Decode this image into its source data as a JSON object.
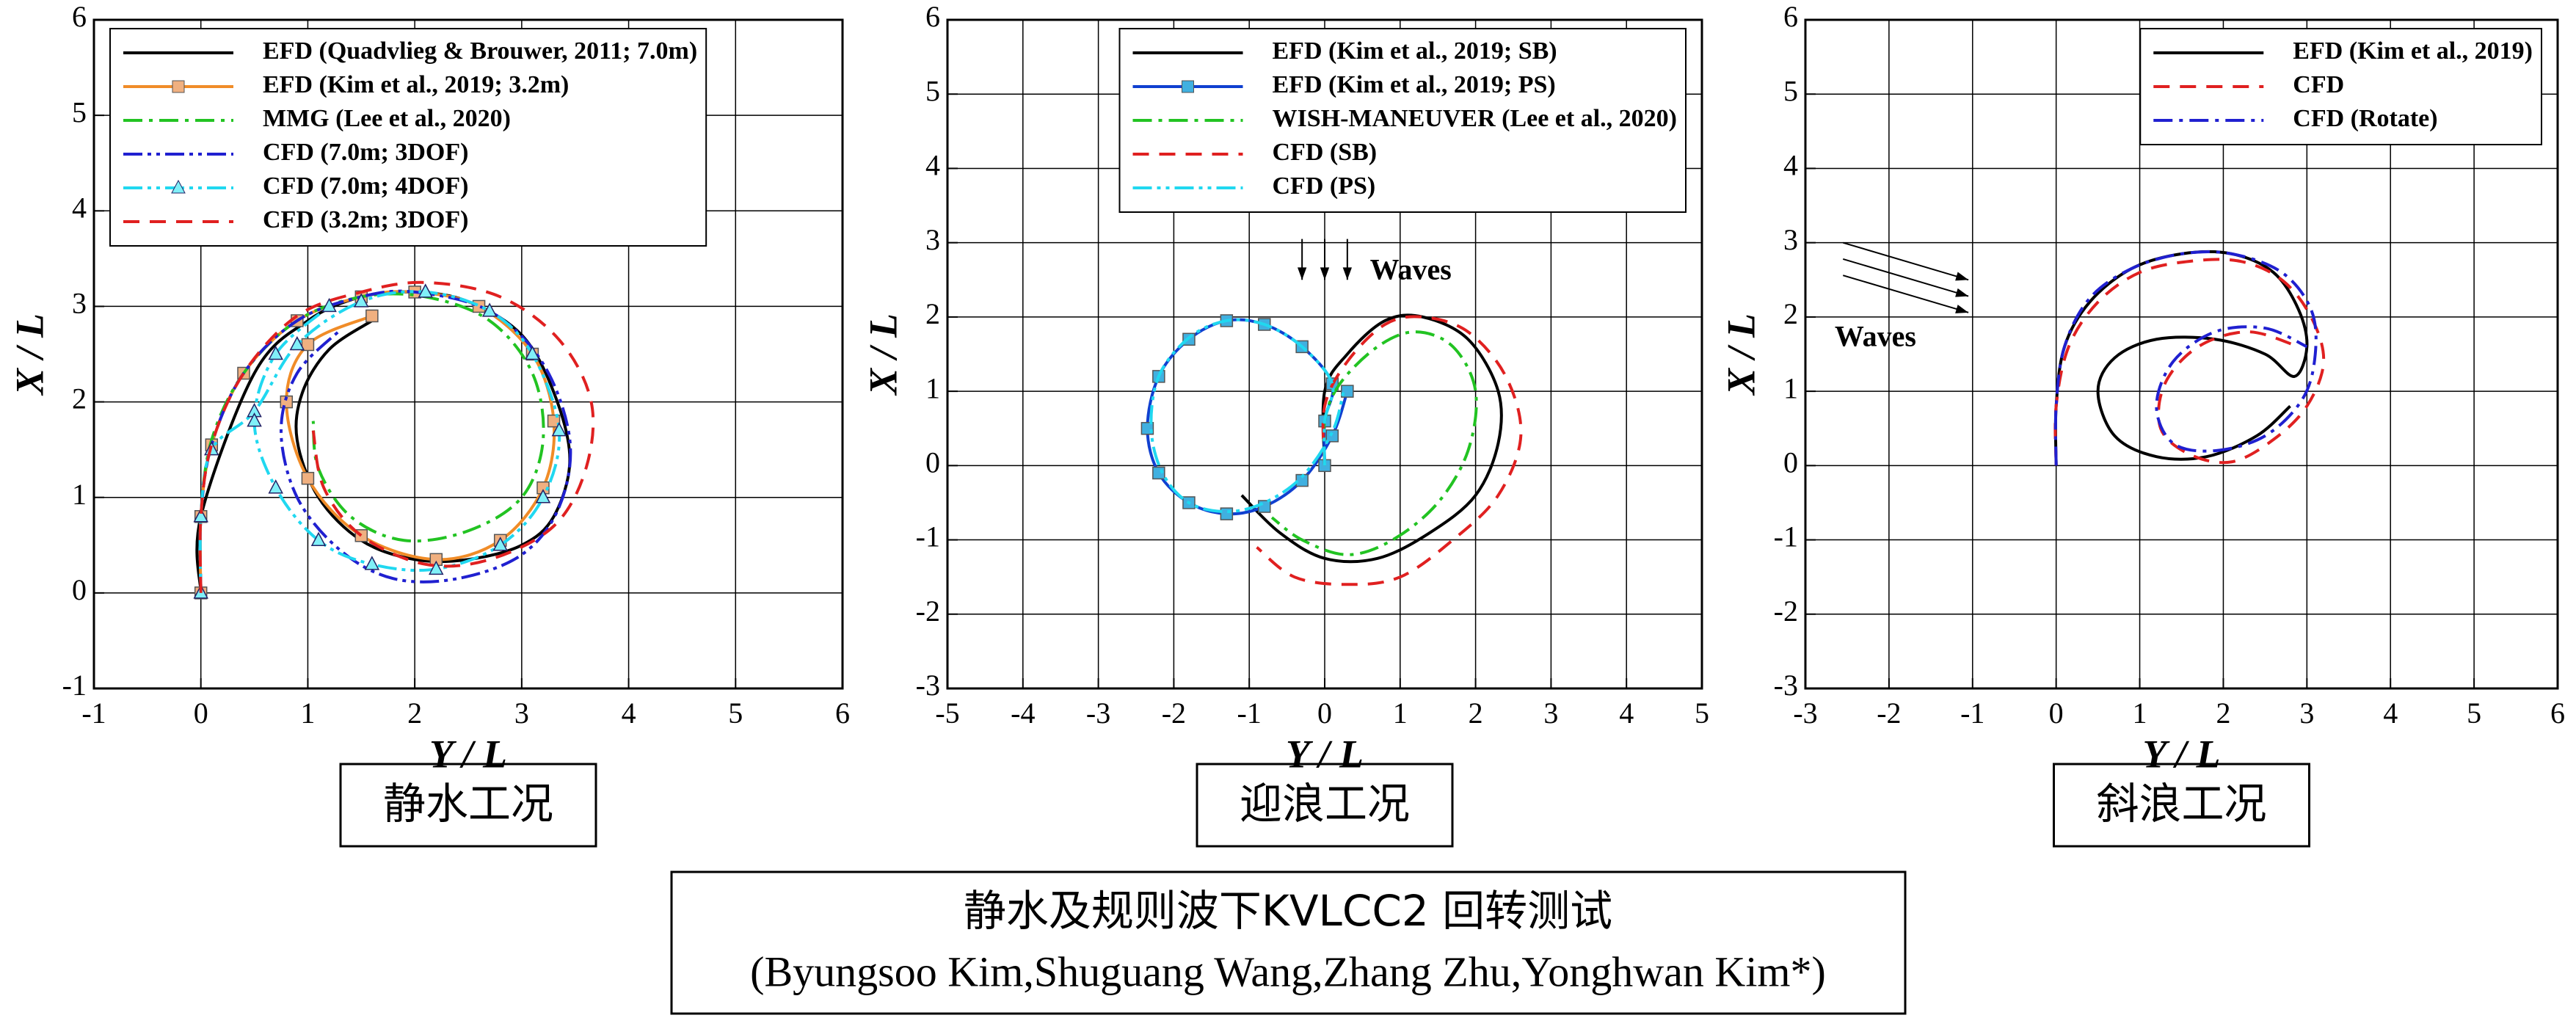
{
  "chart_data": [
    {
      "type": "line",
      "caption": "静水工况",
      "xlabel": "Y / L",
      "ylabel": "X / L",
      "xlim": [
        -1,
        6
      ],
      "ylim": [
        -1,
        6
      ],
      "xticks": [
        -1,
        0,
        1,
        2,
        3,
        4,
        5,
        6
      ],
      "yticks": [
        -1,
        0,
        1,
        2,
        3,
        4,
        5,
        6
      ],
      "grid": true,
      "legend": "upper left",
      "series": [
        {
          "name": "EFD (Quadvlieg & Brouwer, 2011; 7.0m)",
          "color": "#000000",
          "dash": "solid",
          "x": [
            0,
            0,
            0.5,
            1,
            1.5,
            2,
            2.5,
            3,
            3.3,
            3.45,
            3.3,
            3,
            2.5,
            2,
            1.5,
            1.1,
            0.9,
            0.95,
            1.2,
            1.6
          ],
          "values": [
            0,
            0.8,
            2.3,
            2.85,
            3.1,
            3.15,
            3.05,
            2.7,
            2.1,
            1.4,
            0.8,
            0.5,
            0.35,
            0.35,
            0.55,
            1,
            1.6,
            2.1,
            2.55,
            2.85
          ]
        },
        {
          "name": "EFD (Kim et al., 2019; 3.2m)",
          "color": "#f08c28",
          "dash": "solid",
          "marker": "square",
          "x": [
            0,
            0,
            0.1,
            0.4,
            0.9,
            1.5,
            2,
            2.6,
            3.1,
            3.3,
            3.2,
            2.8,
            2.2,
            1.5,
            1,
            0.8,
            1,
            1.6
          ],
          "values": [
            0,
            0.8,
            1.55,
            2.3,
            2.85,
            3.1,
            3.15,
            3,
            2.5,
            1.8,
            1.1,
            0.55,
            0.35,
            0.6,
            1.2,
            2,
            2.6,
            2.9
          ]
        },
        {
          "name": "MMG (Lee et al., 2020)",
          "color": "#22c322",
          "dash": "dashdot",
          "x": [
            0,
            0,
            0.1,
            0.4,
            0.9,
            1.5,
            2.1,
            2.7,
            3.1,
            3.2,
            3,
            2.5,
            1.9,
            1.4,
            1.1,
            1.05
          ],
          "values": [
            0,
            0.8,
            1.6,
            2.3,
            2.85,
            3.1,
            3.1,
            2.85,
            2.3,
            1.6,
            1,
            0.65,
            0.55,
            0.8,
            1.3,
            1.8
          ]
        },
        {
          "name": "CFD (7.0m; 3DOF)",
          "color": "#2020d0",
          "dash": "dashdotdot",
          "x": [
            0,
            0,
            0.1,
            0.4,
            0.9,
            1.5,
            2,
            2.7,
            3.2,
            3.45,
            3.35,
            3,
            2.4,
            1.8,
            1.3,
            0.9,
            0.75,
            0.9,
            1.3
          ],
          "values": [
            0,
            0.8,
            1.55,
            2.3,
            2.85,
            3.1,
            3.15,
            2.95,
            2.4,
            1.6,
            0.9,
            0.4,
            0.15,
            0.15,
            0.45,
            1,
            1.7,
            2.3,
            2.75
          ]
        },
        {
          "name": "CFD (7.0m; 4DOF)",
          "color": "#20d8f0",
          "dash": "dashdotdot",
          "marker": "triangle",
          "x": [
            0,
            0,
            0.1,
            0.5,
            0.9,
            1.5,
            2.1,
            2.7,
            3.1,
            3.35,
            3.2,
            2.8,
            2.2,
            1.6,
            1.1,
            0.7,
            0.5,
            0.7,
            1.2
          ],
          "values": [
            0,
            0.8,
            1.5,
            1.9,
            2.6,
            3.05,
            3.15,
            2.95,
            2.5,
            1.7,
            1,
            0.5,
            0.25,
            0.3,
            0.55,
            1.1,
            1.8,
            2.5,
            3
          ]
        },
        {
          "name": "CFD (3.2m; 3DOF)",
          "color": "#e02020",
          "dash": "dashed",
          "x": [
            0,
            0,
            0.1,
            0.4,
            0.9,
            1.5,
            2.1,
            2.8,
            3.35,
            3.65,
            3.6,
            3.3,
            2.7,
            2.1,
            1.5,
            1.15,
            1.05
          ],
          "values": [
            0,
            0.8,
            1.55,
            2.3,
            2.9,
            3.15,
            3.25,
            3.1,
            2.65,
            2,
            1.3,
            0.7,
            0.35,
            0.3,
            0.6,
            1.1,
            1.7
          ]
        }
      ]
    },
    {
      "type": "line",
      "caption": "迎浪工况",
      "xlabel": "Y / L",
      "ylabel": "X / L",
      "xlim": [
        -5,
        5
      ],
      "ylim": [
        -3,
        6
      ],
      "xticks": [
        -5,
        -4,
        -3,
        -2,
        -1,
        0,
        1,
        2,
        3,
        4,
        5
      ],
      "yticks": [
        -3,
        -2,
        -1,
        0,
        1,
        2,
        3,
        4,
        5,
        6
      ],
      "grid": true,
      "legend": "upper right",
      "annotation": "Waves",
      "series": [
        {
          "name": "EFD (Kim et al., 2019; SB)",
          "color": "#000000",
          "dash": "solid",
          "x": [
            0,
            0,
            0.3,
            0.8,
            1.3,
            1.9,
            2.3,
            2.3,
            2,
            1.4,
            0.7,
            0,
            -0.6,
            -1.1
          ],
          "values": [
            0,
            1,
            1.5,
            1.95,
            2,
            1.7,
            1,
            0.3,
            -0.4,
            -0.9,
            -1.25,
            -1.25,
            -0.9,
            -0.4
          ]
        },
        {
          "name": "EFD (Kim et al., 2019; PS)",
          "color": "#1040d0",
          "dash": "solid",
          "marker": "square",
          "x": [
            0,
            0,
            0.1,
            -0.3,
            -0.8,
            -1.3,
            -1.8,
            -2.2,
            -2.35,
            -2.2,
            -1.8,
            -1.3,
            -0.8,
            -0.3,
            0.1,
            0.3
          ],
          "values": [
            0,
            0.6,
            1.1,
            1.6,
            1.9,
            1.95,
            1.7,
            1.2,
            0.5,
            -0.1,
            -0.5,
            -0.65,
            -0.55,
            -0.2,
            0.4,
            1
          ]
        },
        {
          "name": "WISH-MANEUVER (Lee et al., 2020)",
          "color": "#22c322",
          "dash": "dashdot",
          "x": [
            0,
            0,
            0.2,
            0.7,
            1.2,
            1.7,
            2,
            1.9,
            1.5,
            0.9,
            0.3,
            -0.3,
            -0.7
          ],
          "values": [
            0,
            0.6,
            1.1,
            1.6,
            1.8,
            1.6,
            1,
            0.2,
            -0.5,
            -1,
            -1.2,
            -1,
            -0.7
          ]
        },
        {
          "name": "CFD (SB)",
          "color": "#e02020",
          "dash": "dashed",
          "x": [
            0,
            0,
            0.3,
            0.8,
            1.3,
            1.9,
            2.4,
            2.6,
            2.3,
            1.7,
            1,
            0.3,
            -0.4,
            -0.9
          ],
          "values": [
            0,
            0.8,
            1.4,
            1.9,
            2,
            1.8,
            1.2,
            0.4,
            -0.4,
            -1,
            -1.5,
            -1.6,
            -1.5,
            -1.1
          ]
        },
        {
          "name": "CFD (PS)",
          "color": "#20d8f0",
          "dash": "dashdotdot",
          "x": [
            0,
            0,
            0.1,
            -0.3,
            -0.8,
            -1.3,
            -1.8,
            -2.2,
            -2.3,
            -2.15,
            -1.8,
            -1.3,
            -0.8,
            -0.3,
            0.1,
            0.25
          ],
          "values": [
            0,
            0.6,
            1.1,
            1.6,
            1.9,
            1.95,
            1.72,
            1.2,
            0.5,
            -0.1,
            -0.5,
            -0.62,
            -0.5,
            -0.15,
            0.45,
            1
          ]
        }
      ]
    },
    {
      "type": "line",
      "caption": "斜浪工况",
      "xlabel": "Y / L",
      "ylabel": "X / L",
      "xlim": [
        -3,
        6
      ],
      "ylim": [
        -3,
        6
      ],
      "xticks": [
        -3,
        -2,
        -1,
        0,
        1,
        2,
        3,
        4,
        5,
        6
      ],
      "yticks": [
        -3,
        -2,
        -1,
        0,
        1,
        2,
        3,
        4,
        5,
        6
      ],
      "grid": true,
      "legend": "upper right",
      "annotation": "Waves",
      "series": [
        {
          "name": "EFD (Kim et al., 2019)",
          "color": "#000000",
          "dash": "solid",
          "x": [
            0,
            0,
            0.1,
            0.4,
            0.9,
            1.5,
            2.1,
            2.6,
            2.9,
            3,
            2.85,
            2.5,
            1.9,
            1.2,
            0.7,
            0.5,
            0.7,
            1.2,
            1.8,
            2.4,
            2.8
          ],
          "values": [
            0,
            0.8,
            1.6,
            2.2,
            2.65,
            2.85,
            2.85,
            2.6,
            2.1,
            1.6,
            1.2,
            1.5,
            1.7,
            1.7,
            1.45,
            1,
            0.4,
            0.12,
            0.12,
            0.4,
            0.8
          ]
        },
        {
          "name": "CFD",
          "color": "#e02020",
          "dash": "dashed",
          "x": [
            0,
            0,
            0.15,
            0.5,
            1,
            1.6,
            2.2,
            2.7,
            3.05,
            3.2,
            3,
            2.6,
            2.1,
            1.6,
            1.25,
            1.3,
            1.7,
            2.3,
            2.9
          ],
          "values": [
            0,
            0.8,
            1.6,
            2.2,
            2.6,
            2.75,
            2.75,
            2.5,
            2,
            1.4,
            0.8,
            0.35,
            0.05,
            0.15,
            0.5,
            1.1,
            1.6,
            1.8,
            1.6
          ]
        },
        {
          "name": "CFD (Rotate)",
          "color": "#2020d0",
          "dash": "dashdot",
          "x": [
            0,
            0,
            0.1,
            0.4,
            0.9,
            1.5,
            2.1,
            2.7,
            3.05,
            3.1,
            2.95,
            2.5,
            1.9,
            1.4,
            1.2,
            1.4,
            1.9,
            2.5,
            3
          ],
          "values": [
            0,
            0.8,
            1.6,
            2.25,
            2.65,
            2.85,
            2.85,
            2.6,
            2.1,
            1.5,
            0.9,
            0.4,
            0.2,
            0.3,
            0.8,
            1.4,
            1.8,
            1.85,
            1.6
          ]
        }
      ]
    }
  ],
  "figure_title": [
    "静水及规则波下KVLCC2 回转测试",
    "(Byungsoo Kim,Shuguang Wang,Zhang Zhu,Yonghwan Kim*)"
  ]
}
